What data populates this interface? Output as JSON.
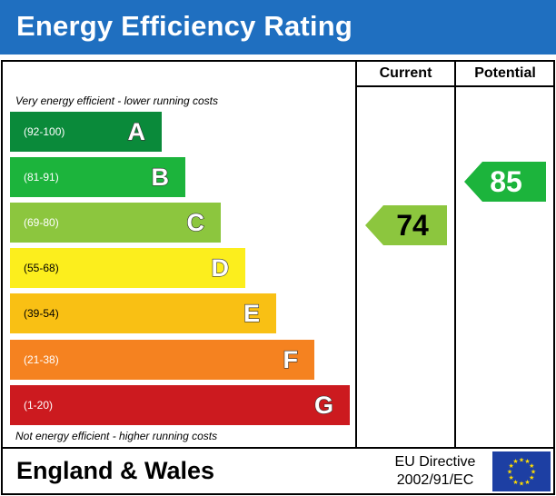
{
  "title": "Energy Efficiency Rating",
  "columns": {
    "current": "Current",
    "potential": "Potential"
  },
  "notes": {
    "top": "Very energy efficient - lower running costs",
    "bottom": "Not energy efficient - higher running costs"
  },
  "bands": [
    {
      "range": "(92-100)",
      "letter": "A",
      "color": "#0a8a3a"
    },
    {
      "range": "(81-91)",
      "letter": "B",
      "color": "#1cb43c"
    },
    {
      "range": "(69-80)",
      "letter": "C",
      "color": "#8cc63e"
    },
    {
      "range": "(55-68)",
      "letter": "D",
      "color": "#fcee1d"
    },
    {
      "range": "(39-54)",
      "letter": "E",
      "color": "#f9c014"
    },
    {
      "range": "(21-38)",
      "letter": "F",
      "color": "#f58220"
    },
    {
      "range": "(1-20)",
      "letter": "G",
      "color": "#cc1a1f"
    }
  ],
  "ratings": {
    "current": {
      "value": "74",
      "band": "C",
      "color": "#8cc63e"
    },
    "potential": {
      "value": "85",
      "band": "B",
      "color": "#1cb43c"
    }
  },
  "footer": {
    "region": "England & Wales",
    "directive_line1": "EU Directive",
    "directive_line2": "2002/91/EC",
    "flag_icon": "eu-flag-icon"
  }
}
